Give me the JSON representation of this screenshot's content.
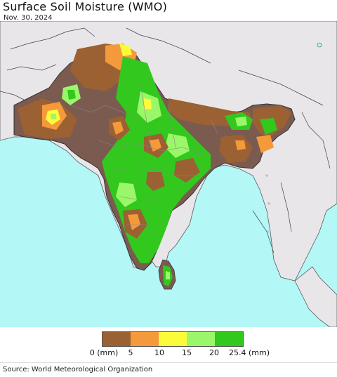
{
  "header": {
    "title": "Surface Soil Moisture (WMO)",
    "date": "Nov. 30, 2024"
  },
  "legend": {
    "colors": [
      "#9b6133",
      "#f59a3a",
      "#fbfb3a",
      "#9bf76a",
      "#32c81e"
    ],
    "tick_labels": [
      "0 (mm)",
      "5",
      "10",
      "15",
      "20",
      "25.4 (mm)"
    ]
  },
  "footer": {
    "source": "Source: World Meteorological Organization"
  },
  "map_colors": {
    "ocean": "#b3f7f7",
    "land_nodata": "#e8e6e8",
    "region_base": "#7b5a50",
    "border": "#5a5a5a"
  }
}
